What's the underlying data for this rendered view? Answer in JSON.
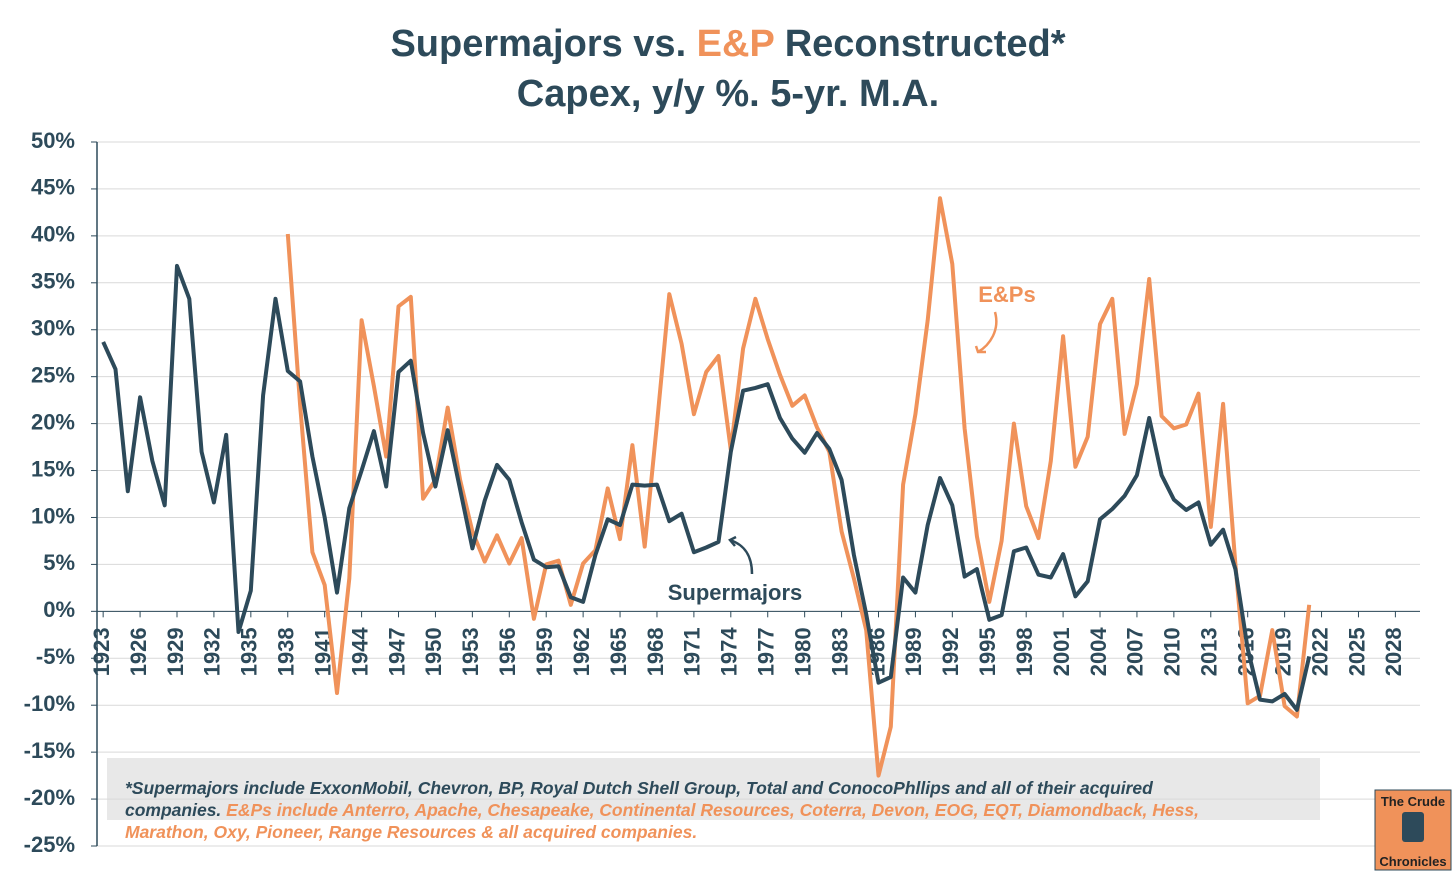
{
  "chart_data": {
    "type": "line",
    "title": [
      {
        "text": "Supermajors vs.",
        "color": "#2d4a5a"
      },
      {
        "text": "E&P",
        "color": "#f0925a"
      },
      {
        "text": "Reconstructed*",
        "color": "#2d4a5a"
      }
    ],
    "subtitle": "Capex, y/y %. 5-yr. M.A.",
    "x": [
      1923,
      1924,
      1925,
      1926,
      1927,
      1928,
      1929,
      1930,
      1931,
      1932,
      1933,
      1934,
      1935,
      1936,
      1937,
      1938,
      1939,
      1940,
      1941,
      1942,
      1943,
      1944,
      1945,
      1946,
      1947,
      1948,
      1949,
      1950,
      1951,
      1952,
      1953,
      1954,
      1955,
      1956,
      1957,
      1958,
      1959,
      1960,
      1961,
      1962,
      1963,
      1964,
      1965,
      1966,
      1967,
      1968,
      1969,
      1970,
      1971,
      1972,
      1973,
      1974,
      1975,
      1976,
      1977,
      1978,
      1979,
      1980,
      1981,
      1982,
      1983,
      1984,
      1985,
      1986,
      1987,
      1988,
      1989,
      1990,
      1991,
      1992,
      1993,
      1994,
      1995,
      1996,
      1997,
      1998,
      1999,
      2000,
      2001,
      2002,
      2003,
      2004,
      2005,
      2006,
      2007,
      2008,
      2009,
      2010,
      2011,
      2012,
      2013,
      2014,
      2015,
      2016,
      2017,
      2018,
      2019,
      2020,
      2021
    ],
    "series": [
      {
        "name": "Supermajors",
        "color": "#2d4a5a",
        "values": [
          28.7,
          25.8,
          12.8,
          22.8,
          16,
          11.3,
          36.8,
          33.3,
          17,
          11.6,
          18.8,
          -2.2,
          2.2,
          23,
          33.3,
          25.6,
          24.5,
          16.5,
          10,
          2,
          11,
          15,
          19.2,
          13.3,
          25.5,
          26.7,
          19,
          13.3,
          19.3,
          13,
          6.7,
          11.8,
          15.6,
          14,
          9.5,
          5.5,
          4.7,
          4.8,
          1.5,
          1,
          6,
          9.8,
          9.2,
          13.5,
          13.4,
          13.5,
          9.6,
          10.4,
          6.3,
          6.8,
          7.4,
          17,
          23.5,
          23.8,
          24.2,
          20.6,
          18.4,
          16.9,
          19,
          17.3,
          14,
          6,
          -0.3,
          -7.6,
          -7,
          3.6,
          2,
          9.2,
          14.2,
          11.3,
          3.7,
          4.5,
          -0.9,
          -0.4,
          6.4,
          6.8,
          3.9,
          3.6,
          6.1,
          1.6,
          3.2,
          9.8,
          10.9,
          12.3,
          14.5,
          20.6,
          14.5,
          11.9,
          10.8,
          11.6,
          7.1,
          8.7,
          4.5,
          -4,
          -9.4,
          -9.6,
          -8.8,
          -10.5,
          -4.8
        ]
      },
      {
        "name": "E&Ps",
        "color": "#f0925a",
        "values": [
          null,
          null,
          null,
          null,
          null,
          null,
          null,
          null,
          null,
          null,
          null,
          null,
          null,
          null,
          null,
          40.2,
          22,
          6.3,
          2.8,
          -8.7,
          3.5,
          31,
          24,
          16.5,
          32.5,
          33.5,
          12,
          14,
          21.7,
          14,
          8.5,
          5.3,
          8.1,
          5.1,
          7.8,
          -0.8,
          5,
          5.4,
          0.7,
          5.1,
          6.5,
          13.1,
          7.7,
          17.7,
          6.9,
          20,
          33.8,
          28.5,
          21,
          25.5,
          27.2,
          17.2,
          28,
          33.3,
          29,
          25.2,
          21.9,
          23,
          19.6,
          17,
          8.5,
          3.5,
          -2,
          -17.5,
          -12.3,
          13.5,
          21,
          31,
          44,
          37,
          19.5,
          8,
          1,
          7.5,
          20,
          11.2,
          7.8,
          16,
          29.3,
          15.4,
          18.6,
          30.6,
          33.3,
          18.9,
          24.2,
          35.4,
          20.8,
          19.5,
          19.9,
          23.2,
          9,
          22.1,
          5,
          -9.8,
          -9,
          -2,
          -10.1,
          -11.2,
          0.7
        ]
      }
    ],
    "xlim": [
      1922.5,
      2030
    ],
    "xticks": [
      1923,
      1926,
      1929,
      1932,
      1935,
      1938,
      1941,
      1944,
      1947,
      1950,
      1953,
      1956,
      1959,
      1962,
      1965,
      1968,
      1971,
      1974,
      1977,
      1980,
      1983,
      1986,
      1989,
      1992,
      1995,
      1998,
      2001,
      2004,
      2007,
      2010,
      2013,
      2016,
      2019,
      2022,
      2025,
      2028
    ],
    "ylim": [
      -25,
      50
    ],
    "yticks": [
      {
        "value": 50,
        "label": "50%"
      },
      {
        "value": 45,
        "label": "45%"
      },
      {
        "value": 40,
        "label": "40%"
      },
      {
        "value": 35,
        "label": "35%"
      },
      {
        "value": 30,
        "label": "30%"
      },
      {
        "value": 25,
        "label": "25%"
      },
      {
        "value": 20,
        "label": "20%"
      },
      {
        "value": 15,
        "label": "15%"
      },
      {
        "value": 10,
        "label": "10%"
      },
      {
        "value": 5,
        "label": "5%"
      },
      {
        "value": 0,
        "label": "0%"
      },
      {
        "value": -5,
        "label": "-5%"
      },
      {
        "value": -10,
        "label": "-10%"
      },
      {
        "value": -15,
        "label": "-15%"
      },
      {
        "value": -20,
        "label": "-20%"
      },
      {
        "value": -25,
        "label": "-25%"
      }
    ],
    "grid": true,
    "annotations": [
      "E&Ps",
      "Supermajors"
    ],
    "footnote": [
      [
        {
          "text": "*Supermajors include ExxonMobil, Chevron, BP, Royal Dutch Shell Group, Total and ConocoPhllips and all of their acquired",
          "color": "#2d4a5a"
        }
      ],
      [
        {
          "text": "companies.",
          "color": "#2d4a5a"
        },
        {
          "text": " E&Ps include Anterro, Apache, Chesapeake, Continental Resources, Coterra, Devon, EOG, EQT, Diamondback, Hess,",
          "color": "#f0925a"
        }
      ],
      [
        {
          "text": "Marathon, Oxy, Pioneer,  Range Resources & all acquired companies.",
          "color": "#f0925a"
        }
      ]
    ],
    "logo": [
      "The Crude",
      "Chronicles"
    ]
  }
}
